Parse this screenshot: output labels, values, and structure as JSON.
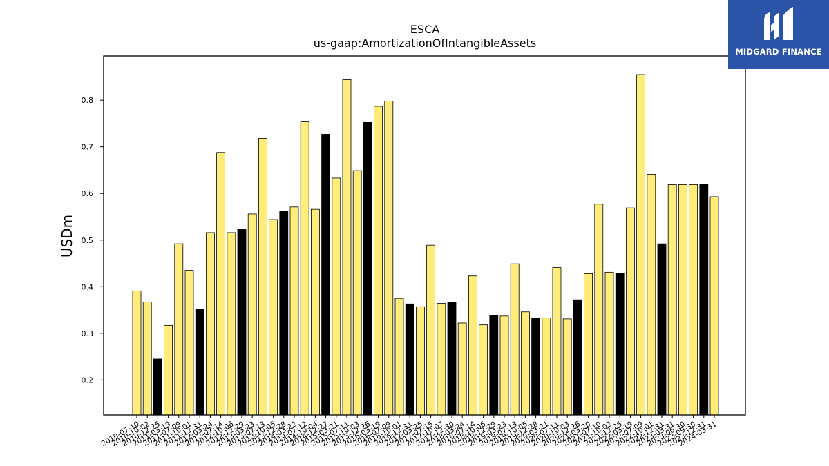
{
  "chart_data": {
    "type": "bar",
    "title": "ESCA",
    "subtitle": "us-gaap:AmortizationOfIntangibleAssets",
    "ylabel": "USDm",
    "xlabel": "",
    "ylim": [
      0.125,
      0.895
    ],
    "yticks": [
      0.2,
      0.3,
      0.4,
      0.5,
      0.6,
      0.7,
      0.8
    ],
    "grid": false,
    "colors": {
      "quarter": "#ffec79",
      "annual": "#000000",
      "edge": "#000000"
    },
    "categories": [
      "2010-07-10",
      "2010-10-02",
      "2010-12-25",
      "2011-03-19",
      "2011-07-09",
      "2011-10-01",
      "2011-12-31",
      "2012-03-24",
      "2012-07-14",
      "2012-10-06",
      "2012-12-29",
      "2013-03-23",
      "2013-07-13",
      "2013-10-05",
      "2013-12-28",
      "2014-03-22",
      "2014-07-12",
      "2014-10-04",
      "2014-12-27",
      "2015-03-21",
      "2015-07-11",
      "2015-10-03",
      "2015-12-26",
      "2016-03-19",
      "2016-07-09",
      "2016-10-01",
      "2016-12-31",
      "2017-03-25",
      "2017-07-15",
      "2017-10-07",
      "2017-12-30",
      "2018-03-24",
      "2018-07-14",
      "2018-10-06",
      "2018-12-29",
      "2019-03-23",
      "2019-07-13",
      "2019-10-05",
      "2019-12-28",
      "2020-03-21",
      "2020-07-11",
      "2020-10-03",
      "2020-12-26",
      "2021-03-20",
      "2021-07-10",
      "2021-10-02",
      "2021-12-25",
      "2022-03-19",
      "2022-07-09",
      "2022-10-01",
      "2022-12-31",
      "2023-03-31",
      "2023-06-30",
      "2023-09-30",
      "2023-12-31",
      "2024-03-31"
    ],
    "values": [
      0.391,
      0.367,
      0.245,
      0.317,
      0.492,
      0.435,
      0.351,
      0.516,
      0.688,
      0.516,
      0.523,
      0.556,
      0.718,
      0.544,
      0.562,
      0.571,
      0.755,
      0.566,
      0.727,
      0.633,
      0.844,
      0.649,
      0.753,
      0.787,
      0.798,
      0.375,
      0.363,
      0.357,
      0.489,
      0.364,
      0.366,
      0.322,
      0.423,
      0.318,
      0.339,
      0.337,
      0.449,
      0.346,
      0.333,
      0.333,
      0.441,
      0.331,
      0.372,
      0.428,
      0.577,
      0.431,
      0.428,
      0.569,
      0.855,
      0.641,
      0.492,
      0.619,
      0.619,
      0.619,
      0.619,
      0.593
    ],
    "annual": [
      false,
      false,
      true,
      false,
      false,
      false,
      true,
      false,
      false,
      false,
      true,
      false,
      false,
      false,
      true,
      false,
      false,
      false,
      true,
      false,
      false,
      false,
      true,
      false,
      false,
      false,
      true,
      false,
      false,
      false,
      true,
      false,
      false,
      false,
      true,
      false,
      false,
      false,
      true,
      false,
      false,
      false,
      true,
      false,
      false,
      false,
      true,
      false,
      false,
      false,
      true,
      false,
      false,
      false,
      true,
      false
    ]
  },
  "logo": {
    "text": "MIDGARD FINANCE",
    "icon": "midgard-logo-icon"
  }
}
